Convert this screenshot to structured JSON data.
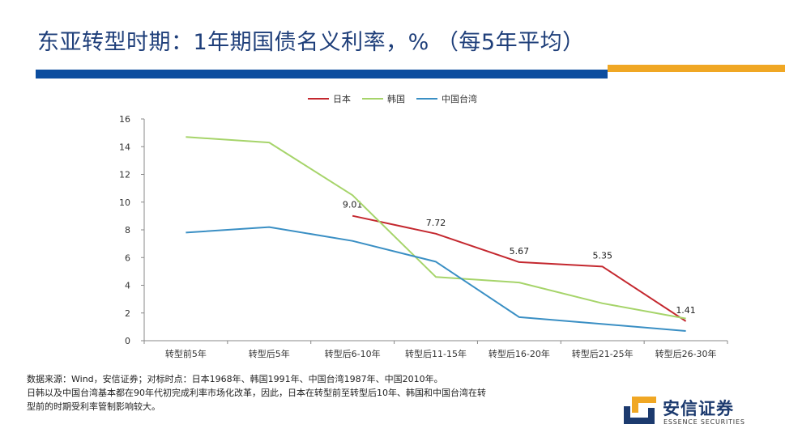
{
  "slide": {
    "title": "东亚转型时期：1年期国债名义利率，% （每5年平均）"
  },
  "colors": {
    "title_blue": "#1f3f7a",
    "rule_blue": "#0c4d9f",
    "rule_gold": "#f0a724"
  },
  "chart_data": {
    "type": "line",
    "categories": [
      "转型前5年",
      "转型后5年",
      "转型后6-10年",
      "转型后11-15年",
      "转型后16-20年",
      "转型后21-25年",
      "转型后26-30年"
    ],
    "ylim": [
      0,
      16
    ],
    "yticks": [
      "0",
      "2",
      "4",
      "6",
      "8",
      "10",
      "12",
      "14",
      "16"
    ],
    "grid": false,
    "legend_position": "top-center",
    "series": [
      {
        "name": "日本",
        "color": "#c4282f",
        "values": [
          null,
          null,
          9.01,
          7.72,
          5.67,
          5.35,
          1.41
        ],
        "labels": [
          "",
          "",
          "9.01",
          "7.72",
          "5.67",
          "5.35",
          "1.41"
        ]
      },
      {
        "name": "韩国",
        "color": "#a6d46a",
        "values": [
          14.7,
          14.3,
          10.5,
          4.6,
          4.2,
          2.7,
          1.6
        ]
      },
      {
        "name": "中国台湾",
        "color": "#3a8fc4",
        "values": [
          7.8,
          8.2,
          7.2,
          5.7,
          1.7,
          1.2,
          0.7
        ]
      }
    ]
  },
  "notes": {
    "line1": "数据来源：Wind，安信证券；对标时点：日本1968年、韩国1991年、中国台湾1987年、中国2010年。",
    "line2": "日韩以及中国台湾基本都在90年代初完成利率市场化改革，因此，日本在转型前至转型后10年、韩国和中国台湾在转",
    "line3": "型前的时期受利率管制影响较大。"
  },
  "brand": {
    "name": "安信证券",
    "sub": "ESSENCE SECURITIES",
    "icon": "essence-logo-mark"
  }
}
